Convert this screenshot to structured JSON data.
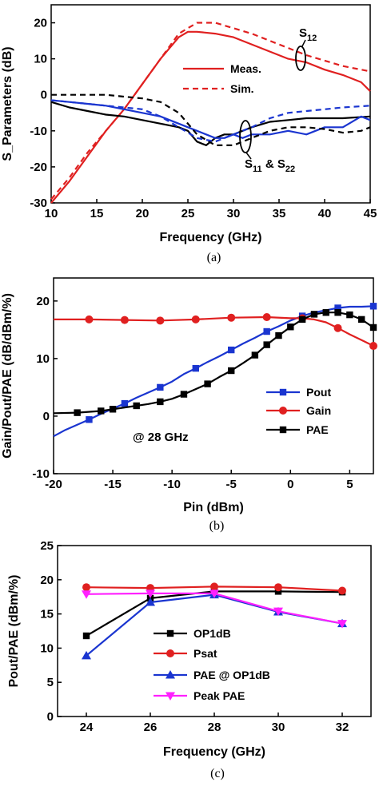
{
  "chart_data": [
    {
      "type": "line",
      "caption": "(a)",
      "xlabel": "Frequency (GHz)",
      "ylabel": "S_Parameters (dB)",
      "xlim": [
        10,
        45
      ],
      "ylim": [
        -30,
        25
      ],
      "xticks": [
        10,
        15,
        20,
        25,
        30,
        35,
        40,
        45
      ],
      "yticks": [
        -30,
        -20,
        -10,
        0,
        10,
        20
      ],
      "legend": {
        "position": "center-right",
        "entries": [
          "Meas.",
          "Sim."
        ]
      },
      "annotations": [
        {
          "text": "S",
          "sub": "12"
        },
        {
          "text": "S",
          "sub": "11",
          "mid": " & S",
          "sub2": "22"
        }
      ],
      "series": [
        {
          "name": "Meas.",
          "label": "S12",
          "color": "#e02020",
          "dash": false,
          "x": [
            10,
            12,
            14,
            16,
            18,
            20,
            22,
            24,
            25,
            26,
            28,
            30,
            32,
            34,
            36,
            38,
            40,
            42,
            44,
            45
          ],
          "y": [
            -30,
            -24,
            -17,
            -10,
            -4,
            3,
            10,
            16,
            17.5,
            17.5,
            17,
            16,
            14,
            12,
            10,
            9,
            7,
            5.5,
            3.5,
            1
          ]
        },
        {
          "name": "Sim.",
          "label": "S12",
          "color": "#e02020",
          "dash": true,
          "x": [
            10,
            12,
            14,
            16,
            18,
            20,
            22,
            24,
            26,
            28,
            30,
            32,
            34,
            36,
            38,
            40,
            42,
            45
          ],
          "y": [
            -29,
            -23,
            -16,
            -10,
            -4,
            3,
            10,
            17,
            20,
            20,
            18.5,
            17,
            15,
            13,
            11,
            9.5,
            8,
            6.5
          ]
        },
        {
          "name": "",
          "label": "S11 meas",
          "color": "#000000",
          "dash": false,
          "x": [
            10,
            12,
            14,
            16,
            18,
            20,
            22,
            24,
            25,
            26,
            27,
            28,
            29,
            30,
            31,
            32,
            34,
            36,
            38,
            40,
            42,
            45
          ],
          "y": [
            -2,
            -3.5,
            -4.5,
            -5.5,
            -6,
            -7,
            -8,
            -9,
            -10,
            -13,
            -14,
            -12,
            -11,
            -11,
            -10,
            -9,
            -7.5,
            -7,
            -6.5,
            -6.5,
            -6.5,
            -6
          ]
        },
        {
          "name": "",
          "label": "S22 meas",
          "color": "#1a35d0",
          "dash": false,
          "x": [
            10,
            12,
            14,
            16,
            18,
            20,
            22,
            24,
            26,
            27,
            28,
            29,
            30,
            31,
            32,
            34,
            36,
            38,
            40,
            42,
            44,
            45
          ],
          "y": [
            -1.5,
            -2,
            -2.5,
            -3,
            -4,
            -5,
            -6,
            -8,
            -10,
            -11,
            -12,
            -12,
            -11,
            -12,
            -11,
            -11,
            -10,
            -11,
            -9,
            -9,
            -6,
            -7
          ]
        },
        {
          "name": "",
          "label": "S11 sim",
          "color": "#000000",
          "dash": true,
          "x": [
            10,
            12,
            14,
            16,
            18,
            20,
            22,
            24,
            26,
            28,
            30,
            32,
            34,
            36,
            38,
            40,
            42,
            44,
            45
          ],
          "y": [
            0,
            0,
            0,
            0,
            -0.5,
            -1,
            -2,
            -5,
            -11,
            -14,
            -14,
            -12,
            -10,
            -9,
            -9,
            -9.5,
            -10.5,
            -10,
            -9
          ]
        },
        {
          "name": "",
          "label": "S22 sim",
          "color": "#1a35d0",
          "dash": true,
          "x": [
            10,
            12,
            14,
            16,
            18,
            20,
            22,
            24,
            26,
            28,
            30,
            32,
            34,
            36,
            38,
            40,
            42,
            45
          ],
          "y": [
            -1.5,
            -2,
            -2.5,
            -3,
            -3.5,
            -4,
            -6,
            -9,
            -12,
            -13,
            -11,
            -9,
            -6.5,
            -5,
            -4.5,
            -4,
            -3.5,
            -3
          ]
        }
      ]
    },
    {
      "type": "line",
      "caption": "(b)",
      "xlabel": "Pin (dBm)",
      "ylabel": "Gain/Pout/PAE (dB/dBm/%)",
      "xlim": [
        -20,
        7
      ],
      "ylim": [
        -10,
        24
      ],
      "xticks": [
        -20,
        -15,
        -10,
        -5,
        0,
        5
      ],
      "yticks": [
        -10,
        0,
        10,
        20
      ],
      "legend": {
        "position": "lower-right",
        "entries": [
          "Pout",
          "Gain",
          "PAE"
        ]
      },
      "annotations": [
        {
          "text": "@ 28 GHz"
        }
      ],
      "series": [
        {
          "name": "Pout",
          "color": "#1a35d0",
          "marker": "square",
          "x": [
            -20,
            -19,
            -18,
            -17,
            -16,
            -15,
            -14,
            -13,
            -12,
            -11,
            -10,
            -9,
            -8,
            -7,
            -6,
            -5,
            -4,
            -3,
            -2,
            -1,
            0,
            1,
            2,
            3,
            4,
            5,
            6,
            7
          ],
          "y": [
            -3.5,
            -2.4,
            -1.5,
            -0.6,
            0.4,
            1.3,
            2.2,
            3.2,
            4.1,
            5.0,
            6.0,
            7.3,
            8.3,
            9.4,
            10.4,
            11.5,
            12.6,
            13.6,
            14.7,
            15.6,
            16.6,
            17.4,
            18.0,
            18.4,
            18.8,
            19.0,
            19.0,
            19.1
          ],
          "marker_x": [
            -17,
            -14,
            -11,
            -8,
            -5,
            -2,
            1,
            4,
            7
          ]
        },
        {
          "name": "Gain",
          "color": "#e02020",
          "marker": "circle",
          "x": [
            -20,
            -17,
            -14,
            -11,
            -8,
            -5,
            -2,
            0,
            1,
            2,
            3,
            4,
            5,
            6,
            7
          ],
          "y": [
            16.8,
            16.8,
            16.7,
            16.6,
            16.8,
            17.1,
            17.2,
            17.0,
            17.0,
            16.8,
            16.3,
            15.3,
            14.2,
            13.2,
            12.2
          ],
          "marker_x": [
            -17,
            -14,
            -11,
            -8,
            -5,
            -2,
            1,
            4,
            7
          ]
        },
        {
          "name": "PAE",
          "color": "#000000",
          "marker": "square",
          "x": [
            -20,
            -18,
            -16,
            -15,
            -14,
            -13,
            -12,
            -11,
            -10,
            -9,
            -8,
            -7,
            -6,
            -5,
            -4,
            -3,
            -2,
            -1,
            0,
            1,
            2,
            3,
            4,
            5,
            6,
            7
          ],
          "y": [
            0.5,
            0.6,
            0.9,
            1.2,
            1.5,
            1.8,
            2.1,
            2.5,
            3.0,
            3.8,
            4.7,
            5.6,
            6.8,
            7.9,
            9.2,
            10.6,
            12.4,
            14.0,
            15.5,
            16.8,
            17.7,
            18.0,
            18.0,
            17.6,
            16.8,
            15.4
          ],
          "marker_x": [
            -18,
            -16,
            -15,
            -13,
            -11,
            -9,
            -7,
            -5,
            -3,
            -2,
            -1,
            0,
            1,
            2,
            3,
            4,
            5,
            6,
            7
          ]
        }
      ]
    },
    {
      "type": "line",
      "caption": "(c)",
      "xlabel": "Frequency (GHz)",
      "ylabel": "Pout/PAE (dBm/%)",
      "xlim": [
        23.1,
        32.9
      ],
      "ylim": [
        0,
        25
      ],
      "xticks": [
        24,
        26,
        28,
        30,
        32
      ],
      "yticks": [
        0,
        5,
        10,
        15,
        20,
        25
      ],
      "legend": {
        "position": "lower-right",
        "entries": [
          "OP1dB",
          "Psat",
          "PAE @ OP1dB",
          "Peak PAE"
        ]
      },
      "series": [
        {
          "name": "OP1dB",
          "color": "#000000",
          "marker": "square",
          "x": [
            24,
            26,
            28,
            30,
            32
          ],
          "y": [
            11.8,
            17.3,
            18.3,
            18.3,
            18.2
          ]
        },
        {
          "name": "Psat",
          "color": "#e02020",
          "marker": "circle",
          "x": [
            24,
            26,
            28,
            30,
            32
          ],
          "y": [
            18.9,
            18.8,
            19.0,
            18.9,
            18.4
          ]
        },
        {
          "name": "PAE @ OP1dB",
          "color": "#1a35d0",
          "marker": "triangle",
          "x": [
            24,
            26,
            28,
            30,
            32
          ],
          "y": [
            8.9,
            16.7,
            17.8,
            15.3,
            13.6
          ]
        },
        {
          "name": "Peak PAE",
          "color": "#ff20ff",
          "marker": "triangle-down",
          "x": [
            24,
            26,
            28,
            30,
            32
          ],
          "y": [
            17.9,
            18.0,
            18.0,
            15.4,
            13.6
          ]
        }
      ]
    }
  ]
}
